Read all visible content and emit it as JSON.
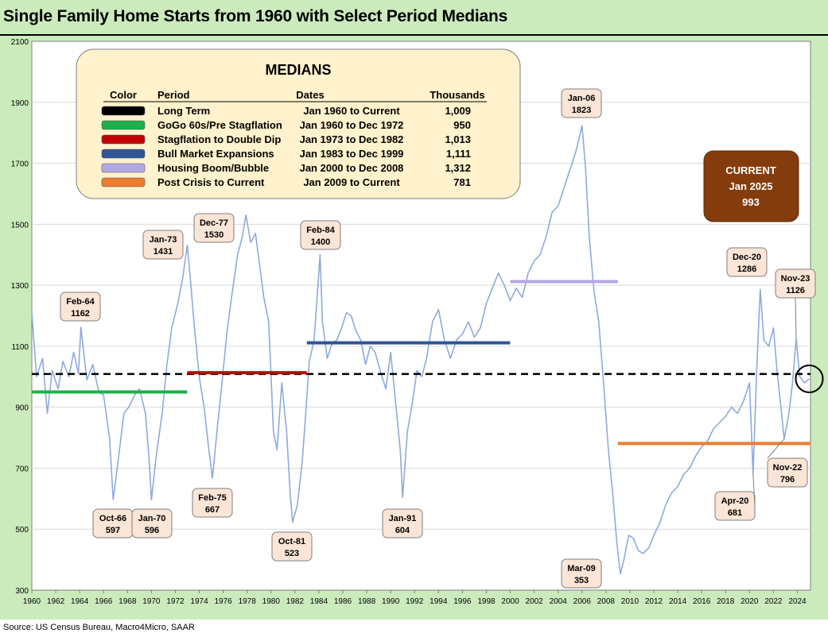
{
  "title": "Single Family Home Starts from 1960 with Select Period Medians",
  "source": "Source: US Census Bureau, Macro4Micro, SAAR",
  "chart_data": {
    "type": "line",
    "title": "Single Family Home Starts from 1960 with Select Period Medians",
    "ylim": [
      300,
      2100
    ],
    "xlim": [
      1960.0,
      2025.1
    ],
    "yticks": [
      "300",
      "500",
      "700",
      "900",
      "1100",
      "1300",
      "1500",
      "1700",
      "1900",
      "2100"
    ],
    "xticks": [
      "1960",
      "1962",
      "1964",
      "1966",
      "1968",
      "1970",
      "1972",
      "1974",
      "1976",
      "1978",
      "1980",
      "1982",
      "1984",
      "1986",
      "1988",
      "1990",
      "1992",
      "1994",
      "1996",
      "1998",
      "2000",
      "2002",
      "2004",
      "2006",
      "2008",
      "2010",
      "2012",
      "2014",
      "2016",
      "2018",
      "2020",
      "2022",
      "2024"
    ],
    "grid": "horizontal",
    "series": [
      {
        "values": [
          [
            1960.0,
            1210
          ],
          [
            1960.4,
            1000
          ],
          [
            1960.9,
            1060
          ],
          [
            1961.3,
            880
          ],
          [
            1961.7,
            1020
          ],
          [
            1962.2,
            960
          ],
          [
            1962.6,
            1050
          ],
          [
            1963.1,
            1000
          ],
          [
            1963.5,
            1080
          ],
          [
            1963.9,
            1010
          ],
          [
            1964.1,
            1162
          ],
          [
            1964.6,
            990
          ],
          [
            1965.1,
            1040
          ],
          [
            1965.6,
            950
          ],
          [
            1966.0,
            940
          ],
          [
            1966.5,
            800
          ],
          [
            1966.8,
            597
          ],
          [
            1967.2,
            720
          ],
          [
            1967.7,
            880
          ],
          [
            1968.1,
            900
          ],
          [
            1968.6,
            940
          ],
          [
            1969.0,
            960
          ],
          [
            1969.5,
            880
          ],
          [
            1969.8,
            730
          ],
          [
            1970.0,
            596
          ],
          [
            1970.4,
            740
          ],
          [
            1970.9,
            880
          ],
          [
            1971.3,
            1040
          ],
          [
            1971.7,
            1160
          ],
          [
            1972.2,
            1240
          ],
          [
            1972.6,
            1320
          ],
          [
            1973.0,
            1431
          ],
          [
            1973.3,
            1300
          ],
          [
            1973.6,
            1160
          ],
          [
            1974.0,
            1000
          ],
          [
            1974.4,
            900
          ],
          [
            1974.8,
            760
          ],
          [
            1975.1,
            667
          ],
          [
            1975.5,
            830
          ],
          [
            1975.9,
            980
          ],
          [
            1976.3,
            1140
          ],
          [
            1976.7,
            1260
          ],
          [
            1977.2,
            1400
          ],
          [
            1977.6,
            1460
          ],
          [
            1977.9,
            1530
          ],
          [
            1978.3,
            1440
          ],
          [
            1978.7,
            1470
          ],
          [
            1979.0,
            1380
          ],
          [
            1979.4,
            1260
          ],
          [
            1979.8,
            1180
          ],
          [
            1980.2,
            820
          ],
          [
            1980.5,
            760
          ],
          [
            1980.9,
            980
          ],
          [
            1981.3,
            820
          ],
          [
            1981.6,
            620
          ],
          [
            1981.8,
            523
          ],
          [
            1982.2,
            580
          ],
          [
            1982.6,
            720
          ],
          [
            1982.9,
            880
          ],
          [
            1983.2,
            1050
          ],
          [
            1983.6,
            1120
          ],
          [
            1984.1,
            1400
          ],
          [
            1984.3,
            1180
          ],
          [
            1984.7,
            1060
          ],
          [
            1985.1,
            1110
          ],
          [
            1985.5,
            1120
          ],
          [
            1985.9,
            1160
          ],
          [
            1986.3,
            1210
          ],
          [
            1986.7,
            1200
          ],
          [
            1987.1,
            1150
          ],
          [
            1987.5,
            1120
          ],
          [
            1987.9,
            1040
          ],
          [
            1988.3,
            1100
          ],
          [
            1988.7,
            1080
          ],
          [
            1989.2,
            1010
          ],
          [
            1989.6,
            960
          ],
          [
            1990.0,
            1080
          ],
          [
            1990.4,
            920
          ],
          [
            1990.8,
            760
          ],
          [
            1991.0,
            604
          ],
          [
            1991.4,
            820
          ],
          [
            1991.8,
            910
          ],
          [
            1992.2,
            1020
          ],
          [
            1992.6,
            1000
          ],
          [
            1993.0,
            1060
          ],
          [
            1993.5,
            1180
          ],
          [
            1994.0,
            1220
          ],
          [
            1994.5,
            1120
          ],
          [
            1995.0,
            1060
          ],
          [
            1995.5,
            1120
          ],
          [
            1996.0,
            1140
          ],
          [
            1996.5,
            1180
          ],
          [
            1997.0,
            1130
          ],
          [
            1997.5,
            1160
          ],
          [
            1998.0,
            1240
          ],
          [
            1998.5,
            1290
          ],
          [
            1999.0,
            1340
          ],
          [
            1999.5,
            1300
          ],
          [
            2000.0,
            1250
          ],
          [
            2000.5,
            1290
          ],
          [
            2001.0,
            1260
          ],
          [
            2001.5,
            1340
          ],
          [
            2002.0,
            1380
          ],
          [
            2002.5,
            1400
          ],
          [
            2003.0,
            1460
          ],
          [
            2003.5,
            1540
          ],
          [
            2004.0,
            1560
          ],
          [
            2004.5,
            1620
          ],
          [
            2005.0,
            1680
          ],
          [
            2005.5,
            1740
          ],
          [
            2006.0,
            1823
          ],
          [
            2006.3,
            1680
          ],
          [
            2006.6,
            1460
          ],
          [
            2007.0,
            1280
          ],
          [
            2007.4,
            1180
          ],
          [
            2007.8,
            980
          ],
          [
            2008.2,
            760
          ],
          [
            2008.6,
            600
          ],
          [
            2008.9,
            460
          ],
          [
            2009.2,
            353
          ],
          [
            2009.5,
            400
          ],
          [
            2009.9,
            480
          ],
          [
            2010.3,
            470
          ],
          [
            2010.7,
            430
          ],
          [
            2011.1,
            420
          ],
          [
            2011.6,
            440
          ],
          [
            2012.0,
            480
          ],
          [
            2012.5,
            520
          ],
          [
            2013.0,
            580
          ],
          [
            2013.5,
            620
          ],
          [
            2014.0,
            640
          ],
          [
            2014.5,
            680
          ],
          [
            2015.0,
            700
          ],
          [
            2015.5,
            740
          ],
          [
            2016.0,
            770
          ],
          [
            2016.5,
            790
          ],
          [
            2017.0,
            830
          ],
          [
            2017.5,
            850
          ],
          [
            2018.0,
            870
          ],
          [
            2018.5,
            900
          ],
          [
            2019.0,
            880
          ],
          [
            2019.5,
            920
          ],
          [
            2020.0,
            980
          ],
          [
            2020.3,
            681
          ],
          [
            2020.6,
            1020
          ],
          [
            2020.9,
            1286
          ],
          [
            2021.2,
            1120
          ],
          [
            2021.6,
            1100
          ],
          [
            2022.0,
            1160
          ],
          [
            2022.3,
            1020
          ],
          [
            2022.6,
            910
          ],
          [
            2022.9,
            796
          ],
          [
            2023.3,
            880
          ],
          [
            2023.6,
            980
          ],
          [
            2023.9,
            1126
          ],
          [
            2024.2,
            1000
          ],
          [
            2024.6,
            980
          ],
          [
            2025.0,
            993
          ]
        ]
      }
    ],
    "reference_lines": [
      {
        "period": "Long Term",
        "value": 1009,
        "from": 1960.0,
        "to": 2025.1,
        "color": "#000000",
        "style": "dashed"
      },
      {
        "period": "GoGo 60s/Pre Stagflation",
        "value": 950,
        "from": 1960.0,
        "to": 1972.99,
        "color": "#1fb04b",
        "style": "solid"
      },
      {
        "period": "Stagflation to Double Dip",
        "value": 1013,
        "from": 1973.0,
        "to": 1982.99,
        "color": "#c00000",
        "style": "solid"
      },
      {
        "period": "Bull Market Expansions",
        "value": 1111,
        "from": 1983.0,
        "to": 1999.99,
        "color": "#2f5597",
        "style": "solid"
      },
      {
        "period": "Housing Boom/Bubble",
        "value": 1312,
        "from": 2000.0,
        "to": 2008.99,
        "color": "#b4a7e6",
        "style": "solid"
      },
      {
        "period": "Post Crisis to Current",
        "value": 781,
        "from": 2009.0,
        "to": 2025.1,
        "color": "#ed7d31",
        "style": "solid"
      }
    ],
    "annotations": [
      {
        "date": "Feb-64",
        "value": "1162",
        "x": 1964.1,
        "y": 1162
      },
      {
        "date": "Oct-66",
        "value": "597",
        "x": 1966.8,
        "y": 597
      },
      {
        "date": "Jan-70",
        "value": "596",
        "x": 1970.0,
        "y": 596
      },
      {
        "date": "Jan-73",
        "value": "1431",
        "x": 1973.0,
        "y": 1431
      },
      {
        "date": "Feb-75",
        "value": "667",
        "x": 1975.1,
        "y": 667
      },
      {
        "date": "Dec-77",
        "value": "1530",
        "x": 1977.9,
        "y": 1530
      },
      {
        "date": "Oct-81",
        "value": "523",
        "x": 1981.8,
        "y": 523
      },
      {
        "date": "Feb-84",
        "value": "1400",
        "x": 1984.1,
        "y": 1400
      },
      {
        "date": "Jan-91",
        "value": "604",
        "x": 1991.0,
        "y": 604
      },
      {
        "date": "Jan-06",
        "value": "1823",
        "x": 2006.0,
        "y": 1823
      },
      {
        "date": "Mar-09",
        "value": "353",
        "x": 2009.2,
        "y": 353
      },
      {
        "date": "Apr-20",
        "value": "681",
        "x": 2020.3,
        "y": 681
      },
      {
        "date": "Dec-20",
        "value": "1286",
        "x": 2020.9,
        "y": 1286
      },
      {
        "date": "Nov-22",
        "value": "796",
        "x": 2022.9,
        "y": 796
      },
      {
        "date": "Nov-23",
        "value": "1126",
        "x": 2023.9,
        "y": 1126
      }
    ],
    "current_highlight": {
      "x": 2025.0,
      "y": 993
    }
  },
  "medians_box": {
    "title": "MEDIANS",
    "headers": {
      "color": "Color",
      "period": "Period",
      "dates": "Dates",
      "thousands": "Thousands"
    },
    "rows": [
      {
        "color": "#000000",
        "period": "Long Term",
        "dates": "Jan 1960 to Current",
        "thousands": "1,009"
      },
      {
        "color": "#1fb04b",
        "period": "GoGo 60s/Pre Stagflation",
        "dates": "Jan 1960 to Dec 1972",
        "thousands": "950"
      },
      {
        "color": "#c00000",
        "period": "Stagflation to Double Dip",
        "dates": "Jan 1973 to Dec 1982",
        "thousands": "1,013"
      },
      {
        "color": "#2f5597",
        "period": "Bull Market Expansions",
        "dates": "Jan 1983 to Dec 1999",
        "thousands": "1,111"
      },
      {
        "color": "#b4a7e6",
        "period": "Housing Boom/Bubble",
        "dates": "Jan 2000 to Dec 2008",
        "thousands": "1,312"
      },
      {
        "color": "#ed7d31",
        "period": "Post Crisis to Current",
        "dates": "Jan 2009 to Current",
        "thousands": "781"
      }
    ]
  },
  "current_box": {
    "line1": "CURRENT",
    "line2": "Jan 2025",
    "line3": "993",
    "color": "#843c0c"
  },
  "colors": {
    "frame": "#ccebbd",
    "series": "#8eaadb",
    "label_box": "#fbe5d6",
    "medians_box": "#fff2cc"
  }
}
